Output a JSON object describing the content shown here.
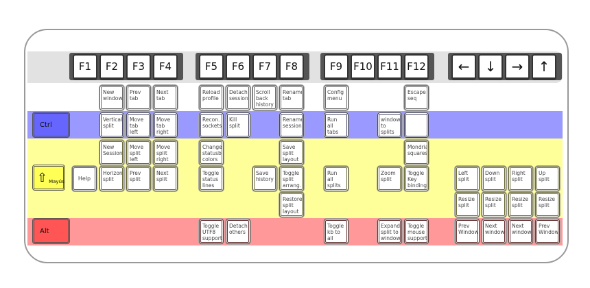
{
  "fkeys": [
    "F1",
    "F2",
    "F3",
    "F4",
    "F5",
    "F6",
    "F7",
    "F8",
    "F9",
    "F10",
    "F11",
    "F12"
  ],
  "arrows": {
    "left": "←",
    "down": "↓",
    "right": "→",
    "up": "↑"
  },
  "modifiers": {
    "ctrl": "Ctrl",
    "shift": "Mayús",
    "alt": "Alt",
    "help": "Help"
  },
  "colors": {
    "ctrl_band": "#9999ff",
    "shift_band": "#ffff99",
    "alt_band": "#ff9999",
    "ctrl_key": "#6666ff",
    "shift_key": "#ffff55",
    "alt_key": "#ff5555"
  },
  "keys": {
    "f2_plain": "New\nwindow",
    "f3_plain": "Prev\ntab",
    "f4_plain": "Next\ntab",
    "f5_plain": "Reload\nprofile",
    "f6_plain": "Detach\nsession",
    "f7_plain": "Scroll\nback\nhistory",
    "f8_plain": "Rename\ntab",
    "f9_plain": "Config\nmenu",
    "f12_plain": "Escape\nseq",
    "f2_ctrl": "Vertical\nsplit",
    "f3_ctrl": "Move\ntab\nleft",
    "f4_ctrl": "Move\ntab\nright",
    "f5_ctrl": "Recon.\nsockets",
    "f6_ctrl": "Kill\nsplit",
    "f8_ctrl": "Rename\nsession",
    "f9_ctrl": "Run\nall\ntabs",
    "f11_ctrl": "windows\nto\nsplits",
    "f12_ctrl": "",
    "f2_ctrlshift": "New\nSession",
    "f3_ctrlshift": "Move\nsplit\nleft",
    "f4_ctrlshift": "Move\nsplit\nright",
    "f5_ctrlshift": "Change\nstatusb.\ncolors",
    "f8_ctrlshift": "Save\nsplit\nlayout",
    "f12_ctrlshift": "Mondrian\nsquares",
    "f2_shift": "Horizon.\nsplit",
    "f3_shift": "Prev\nsplit",
    "f4_shift": "Next\nsplit",
    "f5_shift": "Toggle\nstatus\nlines",
    "f7_shift": "Save\nhistory",
    "f8_shift": "Toggle\nsplit\narrang.",
    "f9_shift": "Run\nall\nsplits",
    "f11_shift": "Zoom\nsplit",
    "f12_shift": "Toggle\nKey\nbindings",
    "f8_altshift": "Restore\nsplit\nlayout",
    "f5_alt": "Toggle\nUTF8\nsupport",
    "f6_alt": "Detach\nothers",
    "f9_alt": "Toggle\nkb to all\nsplits",
    "f11_alt": "Expand\nsplit to\nwindow",
    "f12_alt": "Toggle\nmouse\nsupport",
    "left_shift": "Left\nsplit",
    "down_shift": "Down\nsplit",
    "right_shift": "Right\nsplit",
    "up_shift": "Up\nsplit",
    "left_resize": "Resize\nsplit",
    "down_resize": "Resize\nsplit",
    "right_resize": "Resize\nsplit",
    "up_resize": "Resize\nsplit",
    "left_alt": "Prev\nWindow",
    "down_alt": "Next\nwindow",
    "right_alt": "Next\nwindow",
    "up_alt": "Prev\nWindow"
  }
}
